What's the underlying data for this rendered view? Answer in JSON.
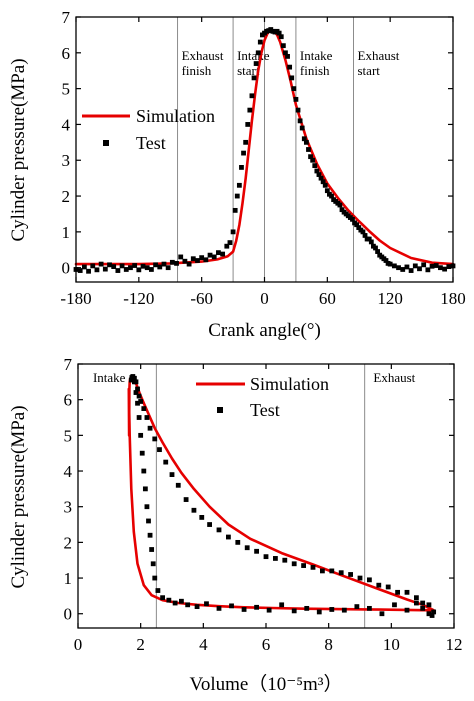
{
  "colors": {
    "simulation": "#e60000",
    "test": "#000000",
    "marker_line": "#7f7f7f"
  },
  "chart_data": [
    {
      "type": "line",
      "xlabel": "Crank angle(°)",
      "ylabel": "Cylinder pressure(MPa)",
      "xlim": [
        -180,
        180
      ],
      "ylim": [
        -0.4,
        7
      ],
      "xticks": [
        -180,
        -120,
        -60,
        0,
        60,
        120,
        180
      ],
      "yticks": [
        0,
        1,
        2,
        3,
        4,
        5,
        6,
        7
      ],
      "grid": false,
      "legend": {
        "position": "center-left",
        "entries": [
          {
            "label": "Simulation",
            "style": "line"
          },
          {
            "label": "Test",
            "style": "square-marker"
          }
        ]
      },
      "vlines": [
        -83,
        -30,
        0,
        30,
        85
      ],
      "annotations": [
        {
          "lines": [
            "Exhaust",
            "finish"
          ],
          "x": -83,
          "y": 5.8
        },
        {
          "lines": [
            "Intake",
            "start"
          ],
          "x": -30,
          "y": 5.8
        },
        {
          "lines": [
            "Intake",
            "finish"
          ],
          "x": 30,
          "y": 5.8
        },
        {
          "lines": [
            "Exhaust",
            "start"
          ],
          "x": 85,
          "y": 5.8
        }
      ],
      "series": [
        {
          "name": "Simulation",
          "style": "line",
          "x": [
            -180,
            -120,
            -90,
            -60,
            -45,
            -35,
            -30,
            -27,
            -24,
            -21,
            -18,
            -15,
            -12,
            -9,
            -6,
            -3,
            0,
            3,
            6,
            9,
            12,
            15,
            20,
            25,
            30,
            40,
            50,
            60,
            70,
            80,
            90,
            100,
            110,
            120,
            140,
            160,
            180
          ],
          "y": [
            0.1,
            0.1,
            0.12,
            0.17,
            0.23,
            0.32,
            0.45,
            0.75,
            1.2,
            1.8,
            2.5,
            3.3,
            4.1,
            4.85,
            5.5,
            6.0,
            6.35,
            6.55,
            6.62,
            6.6,
            6.5,
            6.3,
            5.8,
            5.2,
            4.55,
            3.6,
            2.9,
            2.35,
            1.95,
            1.6,
            1.3,
            1.02,
            0.76,
            0.55,
            0.27,
            0.14,
            0.1
          ]
        },
        {
          "name": "Test",
          "style": "markers",
          "x": [
            -180,
            -176,
            -172,
            -168,
            -164,
            -160,
            -156,
            -152,
            -148,
            -144,
            -140,
            -136,
            -132,
            -128,
            -124,
            -120,
            -116,
            -112,
            -108,
            -104,
            -100,
            -96,
            -92,
            -88,
            -84,
            -80,
            -76,
            -72,
            -68,
            -64,
            -60,
            -56,
            -52,
            -48,
            -44,
            -40,
            -36,
            -33,
            -30,
            -28,
            -26,
            -24,
            -22,
            -20,
            -18,
            -16,
            -14,
            -12,
            -10,
            -8,
            -6,
            -4,
            -2,
            0,
            2,
            4,
            6,
            8,
            10,
            12,
            14,
            16,
            18,
            20,
            22,
            24,
            26,
            28,
            30,
            32,
            34,
            36,
            38,
            40,
            42,
            44,
            46,
            48,
            50,
            52,
            54,
            56,
            58,
            60,
            62,
            64,
            66,
            68,
            70,
            72,
            74,
            76,
            78,
            80,
            82,
            84,
            86,
            88,
            90,
            92,
            94,
            96,
            98,
            100,
            102,
            104,
            106,
            108,
            110,
            112,
            114,
            116,
            118,
            120,
            124,
            128,
            132,
            136,
            140,
            144,
            148,
            152,
            156,
            160,
            164,
            168,
            172,
            176,
            180
          ],
          "y": [
            -0.05,
            -0.08,
            0.02,
            -0.1,
            0.05,
            -0.06,
            0.1,
            -0.04,
            0.08,
            0.03,
            -0.08,
            0.05,
            -0.05,
            0.0,
            0.06,
            -0.06,
            0.04,
            0.0,
            -0.05,
            0.08,
            0.02,
            0.1,
            0.0,
            0.15,
            0.12,
            0.3,
            0.18,
            0.1,
            0.25,
            0.2,
            0.28,
            0.22,
            0.35,
            0.3,
            0.42,
            0.38,
            0.6,
            0.7,
            1.0,
            1.6,
            2.0,
            2.3,
            2.8,
            3.2,
            3.5,
            4.0,
            4.4,
            4.8,
            5.3,
            5.7,
            6.0,
            6.3,
            6.5,
            6.55,
            6.6,
            6.62,
            6.65,
            6.6,
            6.58,
            6.6,
            6.55,
            6.45,
            6.2,
            6.0,
            5.9,
            5.6,
            5.3,
            5.0,
            4.7,
            4.4,
            4.1,
            3.9,
            3.6,
            3.5,
            3.3,
            3.1,
            3.0,
            2.85,
            2.7,
            2.6,
            2.5,
            2.4,
            2.3,
            2.15,
            2.05,
            2.0,
            1.9,
            1.85,
            1.8,
            1.75,
            1.62,
            1.55,
            1.5,
            1.45,
            1.4,
            1.35,
            1.25,
            1.2,
            1.12,
            1.05,
            1.0,
            0.9,
            0.8,
            0.8,
            0.72,
            0.6,
            0.55,
            0.45,
            0.35,
            0.3,
            0.25,
            0.2,
            0.12,
            0.1,
            0.05,
            0.0,
            -0.05,
            0.02,
            -0.08,
            0.05,
            -0.03,
            0.08,
            -0.06,
            0.04,
            0.06,
            0.0,
            -0.04,
            0.03,
            0.05
          ]
        }
      ]
    },
    {
      "type": "line",
      "xlabel": "Volume（10⁻⁵m³）",
      "ylabel": "Cylinder pressure(MPa)",
      "xlim": [
        0,
        12
      ],
      "ylim": [
        -0.4,
        7
      ],
      "xticks": [
        0,
        2,
        4,
        6,
        8,
        10,
        12
      ],
      "yticks": [
        0,
        1,
        2,
        3,
        4,
        5,
        6,
        7
      ],
      "grid": false,
      "legend": {
        "position": "top-center",
        "entries": [
          {
            "label": "Simulation",
            "style": "line"
          },
          {
            "label": "Test",
            "style": "square-marker"
          }
        ]
      },
      "vlines": [
        2.5,
        9.15
      ],
      "annotations": [
        {
          "lines": [
            "Intake"
          ],
          "x": 0.35,
          "y": 6.5
        },
        {
          "lines": [
            "Exhaust"
          ],
          "x": 9.3,
          "y": 6.5
        }
      ],
      "series": [
        {
          "name": "Simulation",
          "style": "line",
          "x": [
            1.62,
            1.65,
            1.7,
            1.78,
            1.9,
            2.1,
            2.35,
            2.7,
            3.2,
            3.8,
            4.5,
            5.3,
            6.2,
            7.2,
            8.2,
            9.2,
            10.2,
            11.0,
            11.35,
            11.0,
            10.5,
            9.5,
            8.5,
            7.5,
            6.5,
            5.5,
            4.8,
            4.2,
            3.7,
            3.3,
            3.0,
            2.7,
            2.45,
            2.25,
            2.1,
            1.98,
            1.9,
            1.84,
            1.8,
            1.74,
            1.7,
            1.67,
            1.65,
            1.64,
            1.63,
            1.62
          ],
          "y": [
            6.3,
            5.0,
            3.5,
            2.3,
            1.4,
            0.8,
            0.52,
            0.38,
            0.3,
            0.25,
            0.21,
            0.18,
            0.16,
            0.14,
            0.13,
            0.12,
            0.11,
            0.1,
            0.1,
            0.25,
            0.4,
            0.72,
            1.05,
            1.38,
            1.7,
            2.1,
            2.5,
            3.0,
            3.5,
            3.95,
            4.35,
            4.8,
            5.2,
            5.6,
            5.9,
            6.15,
            6.35,
            6.48,
            6.55,
            6.6,
            6.62,
            6.6,
            6.5,
            6.3,
            5.0,
            6.3
          ]
        },
        {
          "name": "Test",
          "style": "markers",
          "x": [
            1.75,
            1.8,
            1.85,
            1.9,
            1.95,
            2.0,
            2.05,
            2.1,
            2.15,
            2.2,
            2.25,
            2.3,
            2.35,
            2.4,
            2.45,
            2.55,
            2.7,
            2.9,
            3.1,
            3.3,
            3.5,
            3.8,
            4.1,
            4.5,
            4.9,
            5.3,
            5.7,
            6.1,
            6.5,
            6.9,
            7.3,
            7.7,
            8.1,
            8.5,
            8.9,
            9.3,
            9.7,
            10.1,
            10.5,
            10.8,
            11.0,
            11.2,
            11.3,
            11.35,
            11.2,
            11.0,
            10.8,
            10.5,
            10.2,
            9.9,
            9.6,
            9.3,
            9.0,
            8.7,
            8.4,
            8.1,
            7.8,
            7.5,
            7.2,
            6.9,
            6.6,
            6.3,
            6.0,
            5.7,
            5.4,
            5.1,
            4.8,
            4.5,
            4.2,
            3.95,
            3.7,
            3.45,
            3.2,
            3.0,
            2.8,
            2.6,
            2.45,
            2.3,
            2.2,
            2.1,
            2.0,
            1.95,
            1.9,
            1.85,
            1.8,
            1.75,
            1.72,
            1.7
          ],
          "y": [
            6.6,
            6.5,
            6.2,
            5.9,
            5.5,
            5.0,
            4.5,
            4.0,
            3.5,
            3.0,
            2.6,
            2.2,
            1.8,
            1.4,
            1.0,
            0.65,
            0.45,
            0.38,
            0.3,
            0.35,
            0.25,
            0.2,
            0.28,
            0.15,
            0.22,
            0.12,
            0.18,
            0.1,
            0.25,
            0.08,
            0.15,
            0.05,
            0.12,
            0.1,
            0.2,
            0.15,
            0.0,
            0.25,
            0.1,
            0.3,
            0.15,
            0.0,
            -0.05,
            0.05,
            0.25,
            0.3,
            0.45,
            0.6,
            0.6,
            0.75,
            0.8,
            0.95,
            1.0,
            1.1,
            1.15,
            1.2,
            1.2,
            1.3,
            1.35,
            1.4,
            1.5,
            1.55,
            1.6,
            1.75,
            1.85,
            2.0,
            2.15,
            2.35,
            2.5,
            2.7,
            2.9,
            3.2,
            3.6,
            3.9,
            4.25,
            4.6,
            4.9,
            5.2,
            5.5,
            5.75,
            5.95,
            6.1,
            6.3,
            6.5,
            6.6,
            6.65,
            6.62,
            6.55
          ]
        }
      ]
    }
  ]
}
